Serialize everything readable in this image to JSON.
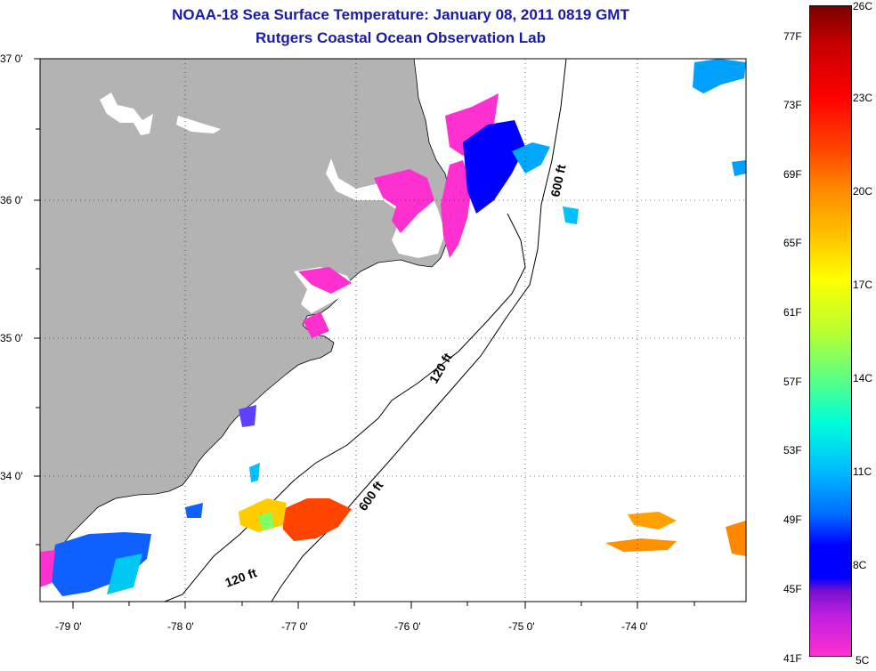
{
  "header": {
    "title": "NOAA-18 Sea Surface Temperature:  January 08, 2011 0819 GMT",
    "subtitle": "Rutgers Coastal Ocean Observation Lab"
  },
  "map": {
    "lat_labels": [
      "37 0'",
      "36 0'",
      "35 0'",
      "34 0'"
    ],
    "lon_labels": [
      "-79 0'",
      "-78 0'",
      "-77 0'",
      "-76 0'",
      "-75 0'",
      "-74 0'"
    ],
    "contour_labels": [
      "600 ft",
      "120 ft",
      "600 ft",
      "120 ft"
    ],
    "colors": {
      "land": "#b3b3b3",
      "water_nodata": "#ffffff",
      "coast": "#000000"
    }
  },
  "colorbar": {
    "fahrenheit_labels": [
      "77F",
      "73F",
      "69F",
      "65F",
      "61F",
      "57F",
      "53F",
      "49F",
      "45F",
      "41F"
    ],
    "celsius_labels": [
      "26C",
      "23C",
      "20C",
      "17C",
      "14C",
      "11C",
      "8C",
      "5C"
    ],
    "range_f": [
      41,
      79
    ],
    "range_c": [
      5,
      26
    ]
  }
}
